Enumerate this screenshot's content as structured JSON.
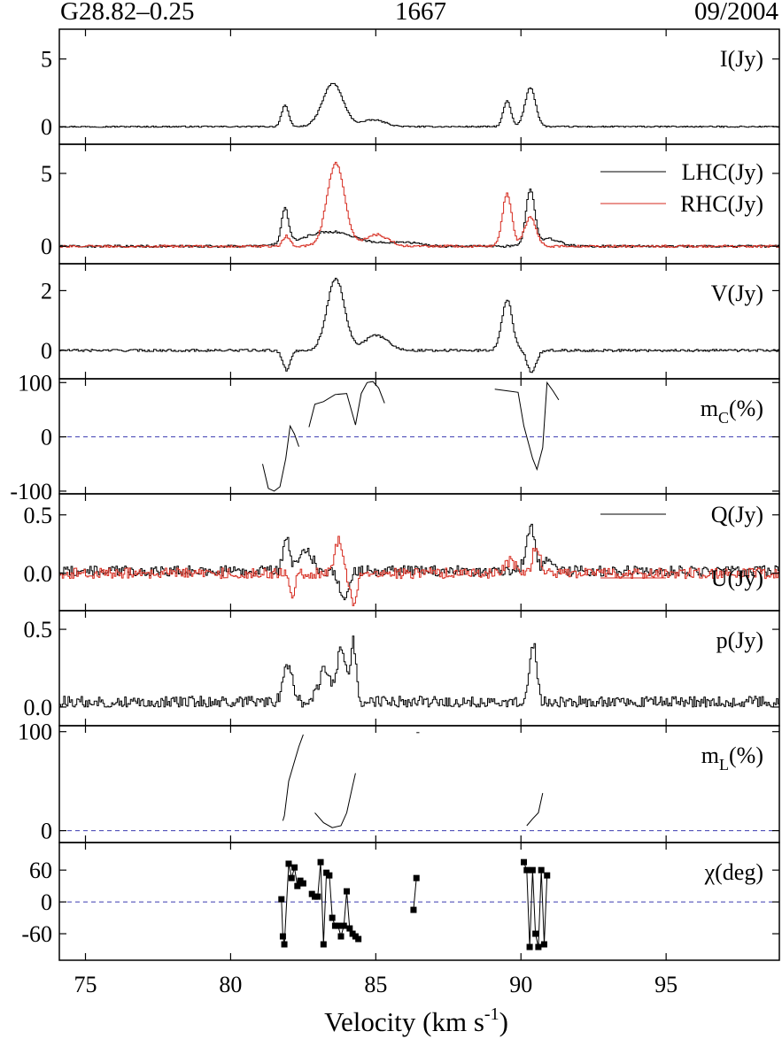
{
  "header": {
    "left": "G28.82–0.25",
    "center": "1667",
    "right": "09/2004"
  },
  "xaxis": {
    "range": [
      74.1,
      98.9
    ],
    "ticks": [
      75,
      80,
      85,
      90,
      95
    ],
    "tick_labels": [
      "75",
      "80",
      "85",
      "90",
      "95"
    ],
    "label_main": "Velocity (km s",
    "label_sup": "-1",
    "label_close": ")"
  },
  "colors": {
    "black": "#000000",
    "red": "#d62a1e",
    "dash": "#3b3bb0"
  },
  "chart_data": [
    {
      "type": "line",
      "id": "I",
      "label": "I(Jy)",
      "ylim": [
        -1.3,
        7.2
      ],
      "yticks": [
        0,
        5
      ],
      "ytick_labels": [
        "0",
        "5"
      ],
      "series": [
        {
          "color": "#000000",
          "step": true,
          "noise": 0.05,
          "peaks": [
            [
              81.85,
              1.6,
              0.12
            ],
            [
              83.5,
              3.2,
              0.35
            ],
            [
              84.9,
              0.5,
              0.4
            ],
            [
              89.5,
              1.9,
              0.13
            ],
            [
              90.3,
              2.9,
              0.18
            ]
          ]
        }
      ]
    },
    {
      "type": "line",
      "id": "LR",
      "ylim": [
        -1.2,
        7.0
      ],
      "yticks": [
        0,
        5
      ],
      "ytick_labels": [
        "0",
        "5"
      ],
      "series": [
        {
          "name": "LHC(Jy)",
          "color": "#000000",
          "step": true,
          "noise": 0.08,
          "peaks": [
            [
              81.85,
              2.4,
              0.12
            ],
            [
              83.4,
              1.0,
              0.9
            ],
            [
              85.9,
              0.3,
              0.5
            ],
            [
              90.3,
              3.8,
              0.15
            ],
            [
              90.9,
              0.5,
              0.4
            ]
          ]
        },
        {
          "name": "RHC(Jy)",
          "color": "#d62a1e",
          "step": true,
          "noise": 0.08,
          "peaks": [
            [
              81.9,
              0.7,
              0.12
            ],
            [
              83.6,
              5.7,
              0.3
            ],
            [
              85.0,
              0.8,
              0.4
            ],
            [
              89.5,
              3.6,
              0.16
            ],
            [
              90.3,
              2.0,
              0.2
            ]
          ]
        }
      ]
    },
    {
      "type": "line",
      "id": "V",
      "label": "V(Jy)",
      "ylim": [
        -0.95,
        2.9
      ],
      "yticks": [
        0,
        2
      ],
      "ytick_labels": [
        "0",
        "2"
      ],
      "series": [
        {
          "color": "#000000",
          "step": true,
          "noise": 0.04,
          "peaks": [
            [
              81.9,
              -0.65,
              0.13
            ],
            [
              83.6,
              2.4,
              0.3
            ],
            [
              85.0,
              0.5,
              0.4
            ],
            [
              89.5,
              1.7,
              0.18
            ],
            [
              90.35,
              -0.75,
              0.15
            ]
          ]
        }
      ]
    },
    {
      "type": "line",
      "id": "mC",
      "label": "m",
      "label_sub": "C",
      "label_tail": "(%)",
      "ylim": [
        -105,
        107
      ],
      "yticks": [
        -100,
        0,
        100
      ],
      "ytick_labels": [
        "-100",
        "0",
        "100"
      ],
      "zero_line": true,
      "segments": [
        [
          [
            81.1,
            -50
          ],
          [
            81.3,
            -95
          ],
          [
            81.5,
            -100
          ],
          [
            81.7,
            -92
          ],
          [
            81.9,
            -40
          ],
          [
            82.05,
            20
          ],
          [
            82.2,
            5
          ],
          [
            82.35,
            -18
          ]
        ],
        [
          [
            82.7,
            18
          ],
          [
            82.9,
            60
          ],
          [
            83.2,
            65
          ],
          [
            83.6,
            78
          ],
          [
            84.0,
            80
          ],
          [
            84.3,
            22
          ],
          [
            84.5,
            80
          ],
          [
            84.7,
            100
          ],
          [
            84.9,
            102
          ],
          [
            85.1,
            90
          ],
          [
            85.3,
            62
          ]
        ],
        [
          [
            86.2,
            -105
          ],
          [
            86.45,
            -105
          ]
        ],
        [
          [
            89.1,
            88
          ],
          [
            89.5,
            85
          ],
          [
            89.9,
            82
          ],
          [
            90.1,
            20
          ],
          [
            90.4,
            -40
          ],
          [
            90.55,
            -60
          ],
          [
            90.75,
            -20
          ],
          [
            90.9,
            100
          ],
          [
            91.1,
            85
          ],
          [
            91.3,
            68
          ]
        ]
      ]
    },
    {
      "type": "line",
      "id": "QU",
      "ylim": [
        -0.32,
        0.68
      ],
      "yticks": [
        0.0,
        0.5
      ],
      "ytick_labels": [
        "0.0",
        "0.5"
      ],
      "series": [
        {
          "name": "Q(Jy)",
          "color": "#000000",
          "step": true,
          "noise": 0.045,
          "offset": 0.02,
          "peaks": [
            [
              81.9,
              0.28,
              0.12
            ],
            [
              82.6,
              0.18,
              0.2
            ],
            [
              83.9,
              -0.25,
              0.15
            ],
            [
              90.3,
              0.38,
              0.15
            ],
            [
              90.9,
              0.1,
              0.15
            ]
          ]
        },
        {
          "name": "U(Jy)",
          "color": "#d62a1e",
          "step": true,
          "noise": 0.045,
          "peaks": [
            [
              82.1,
              -0.18,
              0.1
            ],
            [
              83.7,
              0.3,
              0.12
            ],
            [
              84.2,
              -0.25,
              0.12
            ],
            [
              89.6,
              0.1,
              0.2
            ],
            [
              90.5,
              0.25,
              0.12
            ]
          ]
        }
      ]
    },
    {
      "type": "line",
      "id": "p",
      "label": "p(Jy)",
      "ylim": [
        -0.12,
        0.62
      ],
      "yticks": [
        0.0,
        0.5
      ],
      "ytick_labels": [
        "0.0",
        "0.5"
      ],
      "series": [
        {
          "color": "#000000",
          "step": true,
          "noise": 0.04,
          "offset": 0.03,
          "abs": true,
          "peaks": [
            [
              81.95,
              0.25,
              0.15
            ],
            [
              83.2,
              0.2,
              0.2
            ],
            [
              83.8,
              0.35,
              0.15
            ],
            [
              84.2,
              0.38,
              0.1
            ],
            [
              90.4,
              0.38,
              0.12
            ]
          ]
        }
      ]
    },
    {
      "type": "line",
      "id": "mL",
      "label": "m",
      "label_sub": "L",
      "label_tail": "(%)",
      "ylim": [
        -12,
        106
      ],
      "yticks": [
        0,
        100
      ],
      "ytick_labels": [
        "0",
        "100"
      ],
      "zero_line": true,
      "segments": [
        [
          [
            81.8,
            10
          ],
          [
            81.85,
            15
          ],
          [
            82.0,
            50
          ],
          [
            82.15,
            65
          ],
          [
            82.35,
            85
          ],
          [
            82.5,
            97
          ]
        ],
        [
          [
            82.9,
            18
          ],
          [
            83.2,
            8
          ],
          [
            83.5,
            3
          ],
          [
            83.8,
            5
          ],
          [
            84.0,
            18
          ],
          [
            84.2,
            45
          ],
          [
            84.3,
            58
          ]
        ],
        [
          [
            86.4,
            99
          ],
          [
            86.5,
            99
          ]
        ],
        [
          [
            90.2,
            5
          ],
          [
            90.4,
            12
          ],
          [
            90.6,
            18
          ],
          [
            90.75,
            38
          ]
        ]
      ]
    },
    {
      "type": "scatter",
      "id": "chi",
      "label": "χ(deg)",
      "ylim": [
        -110,
        112
      ],
      "yticks": [
        -60,
        0,
        60
      ],
      "ytick_labels": [
        "-60",
        "0",
        "60"
      ],
      "zero_line": true,
      "groups": [
        [
          [
            81.75,
            5
          ],
          [
            81.8,
            -65
          ],
          [
            81.85,
            -80
          ],
          [
            82.0,
            72
          ],
          [
            82.1,
            45
          ],
          [
            82.2,
            65
          ],
          [
            82.3,
            30
          ],
          [
            82.4,
            40
          ],
          [
            82.5,
            35
          ]
        ],
        [
          [
            82.8,
            15
          ],
          [
            82.9,
            10
          ],
          [
            83.0,
            10
          ],
          [
            83.1,
            75
          ],
          [
            83.2,
            -80
          ],
          [
            83.3,
            55
          ],
          [
            83.4,
            50
          ],
          [
            83.5,
            -30
          ],
          [
            83.6,
            -45
          ],
          [
            83.7,
            -45
          ],
          [
            83.8,
            -65
          ],
          [
            83.9,
            -45
          ],
          [
            84.0,
            20
          ],
          [
            84.1,
            -50
          ],
          [
            84.2,
            -60
          ],
          [
            84.3,
            -65
          ],
          [
            84.4,
            -70
          ]
        ],
        [
          [
            86.3,
            -15
          ],
          [
            86.4,
            45
          ]
        ],
        [
          [
            90.1,
            75
          ],
          [
            90.2,
            60
          ],
          [
            90.3,
            -85
          ],
          [
            90.4,
            60
          ],
          [
            90.5,
            -60
          ],
          [
            90.6,
            -85
          ],
          [
            90.7,
            60
          ],
          [
            90.8,
            -80
          ],
          [
            90.9,
            50
          ]
        ]
      ]
    }
  ]
}
